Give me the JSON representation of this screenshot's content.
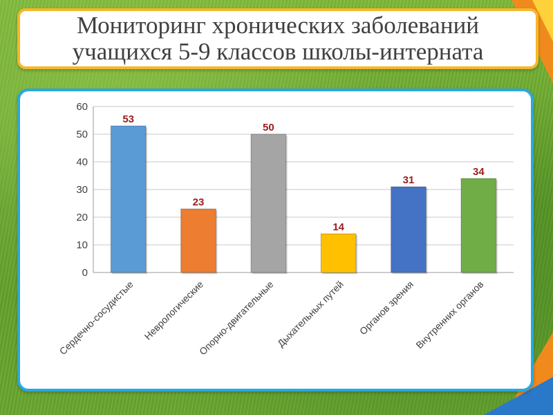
{
  "title": {
    "line1": "Мониторинг хронических заболеваний",
    "line2": "учащихся 5-9 классов школы-интерната"
  },
  "chart_data": {
    "type": "bar",
    "categories": [
      "Сердечно-сосудистые",
      "Неврологические",
      "Опорно-двигательные",
      "Дыхательных путей",
      "Органов зрения",
      "Внутренних органов"
    ],
    "values": [
      53,
      23,
      50,
      14,
      31,
      34
    ],
    "colors": [
      "#5b9bd5",
      "#ed7d31",
      "#a5a5a5",
      "#ffc000",
      "#4472c4",
      "#70ad47"
    ],
    "ylim": [
      0,
      60
    ],
    "yticks": [
      0,
      10,
      20,
      30,
      40,
      50,
      60
    ],
    "grid": true,
    "legend": "none",
    "xlabel": "",
    "ylabel": ""
  }
}
